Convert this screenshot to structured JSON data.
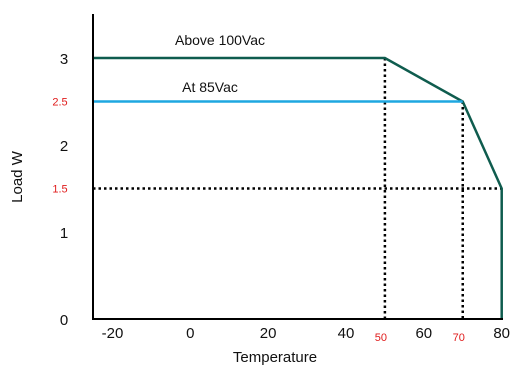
{
  "chart_data": {
    "type": "line",
    "xlabel": "Temperature",
    "ylabel": "Load W",
    "xlim": [
      -25,
      88
    ],
    "ylim": [
      0,
      3.5
    ],
    "x_ticks": [
      {
        "value": -20,
        "label": "-20",
        "highlight": false
      },
      {
        "value": 0,
        "label": "0",
        "highlight": false
      },
      {
        "value": 20,
        "label": "20",
        "highlight": false
      },
      {
        "value": 40,
        "label": "40",
        "highlight": false
      },
      {
        "value": 50,
        "label": "50",
        "highlight": true
      },
      {
        "value": 60,
        "label": "60",
        "highlight": false
      },
      {
        "value": 70,
        "label": "70",
        "highlight": true
      },
      {
        "value": 80,
        "label": "80",
        "highlight": false
      }
    ],
    "y_ticks": [
      {
        "value": 0,
        "label": "0",
        "highlight": false
      },
      {
        "value": 1,
        "label": "1",
        "highlight": false
      },
      {
        "value": 1.5,
        "label": "1.5",
        "highlight": true
      },
      {
        "value": 2,
        "label": "2",
        "highlight": false
      },
      {
        "value": 2.5,
        "label": "2.5",
        "highlight": true
      },
      {
        "value": 3,
        "label": "3",
        "highlight": false
      }
    ],
    "series": [
      {
        "name": "Above 100Vac",
        "color": "#0f5c4e",
        "points": [
          [
            -25,
            3
          ],
          [
            50,
            3
          ],
          [
            70,
            2.5
          ],
          [
            80,
            1.5
          ],
          [
            80,
            0
          ]
        ]
      },
      {
        "name": "At 85Vac",
        "color": "#1ea7e0",
        "points": [
          [
            -25,
            2.5
          ],
          [
            70,
            2.5
          ]
        ]
      }
    ],
    "reference_lines": [
      {
        "from": [
          50,
          3
        ],
        "to": [
          50,
          0
        ]
      },
      {
        "from": [
          70,
          2.5
        ],
        "to": [
          70,
          0
        ]
      },
      {
        "from": [
          -25,
          1.5
        ],
        "to": [
          80,
          1.5
        ]
      }
    ],
    "grid": false,
    "legend": "none",
    "highlight_color": "#e01b1b"
  }
}
